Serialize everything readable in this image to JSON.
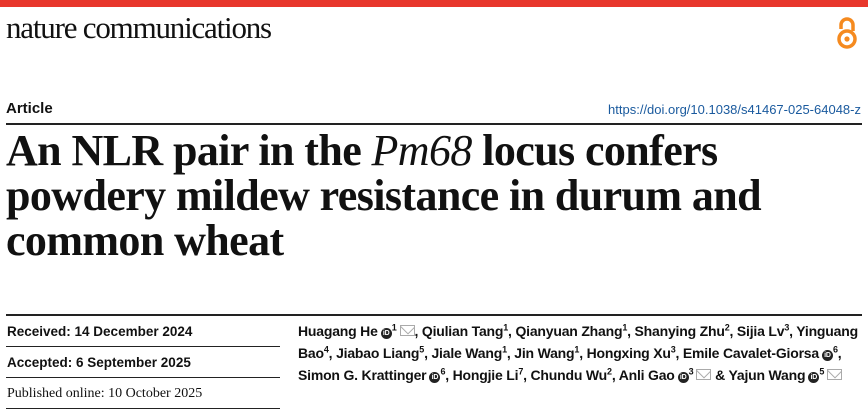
{
  "journal": "nature communications",
  "article_type": "Article",
  "doi": "https://doi.org/10.1038/s41467-025-64048-z",
  "title": {
    "pre": "An NLR pair in the ",
    "italic": "Pm68",
    "post": " locus confers powdery mildew resistance in durum and common wheat"
  },
  "dates": {
    "received": "Received: 14 December 2024",
    "accepted": "Accepted: 6 September 2025",
    "published": "Published online: 10 October 2025"
  },
  "authors": [
    {
      "name": "Huagang He",
      "aff": "1",
      "orcid": true,
      "email": true,
      "sep": ", "
    },
    {
      "name": "Qiulian Tang",
      "aff": "1",
      "sep": ", "
    },
    {
      "name": "Qianyuan Zhang",
      "aff": "1",
      "sep": ", "
    },
    {
      "name": "Shanying Zhu",
      "aff": "2",
      "sep": ", "
    },
    {
      "name": "Sijia Lv",
      "aff": "3",
      "sep": ", "
    },
    {
      "name": "Yinguang Bao",
      "aff": "4",
      "sep": ", "
    },
    {
      "name": "Jiabao Liang",
      "aff": "5",
      "sep": ", "
    },
    {
      "name": "Jiale Wang",
      "aff": "1",
      "sep": ", "
    },
    {
      "name": "Jin Wang",
      "aff": "1",
      "sep": ", "
    },
    {
      "name": "Hongxing Xu",
      "aff": "3",
      "sep": ", "
    },
    {
      "name": "Emile Cavalet-Giorsa",
      "aff": "6",
      "orcid": true,
      "sep": ", "
    },
    {
      "name": "Simon G. Krattinger",
      "aff": "6",
      "orcid": true,
      "sep": ", "
    },
    {
      "name": "Hongjie Li",
      "aff": "7",
      "sep": ", "
    },
    {
      "name": "Chundu Wu",
      "aff": "2",
      "sep": ", "
    },
    {
      "name": "Anli Gao",
      "aff": "3",
      "orcid": true,
      "email": true,
      "sep": " & "
    },
    {
      "name": "Yajun Wang",
      "aff": "5",
      "orcid": true,
      "email": true,
      "sep": ""
    }
  ],
  "colors": {
    "brand_red": "#e8372c",
    "open_access": "#f58a1f",
    "link": "#1a5a9e"
  }
}
